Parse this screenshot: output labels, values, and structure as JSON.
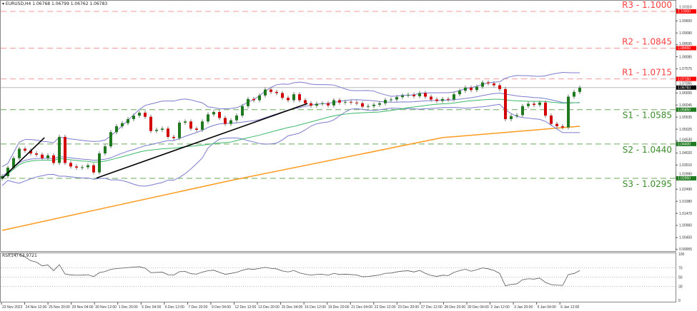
{
  "header": {
    "symbol": "EURUSD,H4",
    "ohlc": "1.06768 1.06799 1.06762 1.06783"
  },
  "rsi_label": "RSI(14) 63.9721",
  "colors": {
    "bull": "#1f7a1f",
    "bear": "#d40000",
    "resistance": "#ff4040",
    "support": "#3c8c2c",
    "bollinger": "#7b7bcf",
    "ma_green": "#3cb86a",
    "ma_orange": "#ff9a1f",
    "trendline": "#000000"
  },
  "chart_data": {
    "type": "candlestick",
    "symbol": "EURUSD",
    "timeframe": "H4",
    "ylim": [
      0.9988,
      1.1048
    ],
    "grid": false,
    "closes": [
      1.0304,
      1.034,
      1.038,
      1.042,
      1.0412,
      1.04,
      1.0395,
      1.038,
      1.0392,
      1.036,
      1.047,
      1.036,
      1.0345,
      1.034,
      1.0342,
      1.035,
      1.032,
      1.04,
      1.043,
      1.049,
      1.0515,
      1.0528,
      1.0545,
      1.056,
      1.0572,
      1.0555,
      1.0495,
      1.05,
      1.0505,
      1.047,
      1.0465,
      1.053,
      1.0535,
      1.0505,
      1.05,
      1.0535,
      1.0565,
      1.0575,
      1.055,
      1.0525,
      1.054,
      1.056,
      1.06,
      1.063,
      1.0625,
      1.0645,
      1.067,
      1.066,
      1.0655,
      1.0635,
      1.0625,
      1.065,
      1.0625,
      1.0612,
      1.0602,
      1.061,
      1.0612,
      1.0603,
      1.0625,
      1.0615,
      1.0618,
      1.0615,
      1.0612,
      1.0598,
      1.06,
      1.0606,
      1.0612,
      1.0626,
      1.0628,
      1.0638,
      1.0645,
      1.0648,
      1.0642,
      1.0655,
      1.064,
      1.0628,
      1.0622,
      1.063,
      1.0628,
      1.065,
      1.0665,
      1.0678,
      1.0668,
      1.0682,
      1.07,
      1.0696,
      1.0688,
      1.0672,
      1.0545,
      1.0558,
      1.0562,
      1.06,
      1.061,
      1.0605,
      1.0615,
      1.056,
      1.0525,
      1.0515,
      1.051,
      1.064,
      1.066,
      1.0678
    ],
    "ma_orange_points": [
      [
        0,
        1.0075
      ],
      [
        40,
        1.0286
      ],
      [
        77,
        1.0467
      ],
      [
        101,
        1.0515
      ]
    ],
    "trendlines": [
      {
        "from": [
          0,
          1.0295
        ],
        "to": [
          7.4,
          1.0467
        ]
      },
      {
        "from": [
          16.5,
          1.0296
        ],
        "to": [
          53.4,
          1.0611
        ]
      }
    ],
    "current_price": 1.06783,
    "levels": [
      {
        "name": "R3",
        "label": "R3 - 1.1000",
        "price": 1.1,
        "tag": "1.10000",
        "type": "resistance"
      },
      {
        "name": "R2",
        "label": "R2 - 1.0845",
        "price": 1.0845,
        "tag": "1.08450",
        "type": "resistance"
      },
      {
        "name": "R1",
        "label": "R1 - 1.0715",
        "price": 1.0715,
        "tag": "1.07150",
        "type": "resistance"
      },
      {
        "name": "S1",
        "label": "S1 - 1.0585",
        "price": 1.0585,
        "tag": "1.05850",
        "type": "support"
      },
      {
        "name": "S2",
        "label": "S2 - 1.0440",
        "price": 1.044,
        "tag": "1.04400",
        "type": "support"
      },
      {
        "name": "S3",
        "label": "S3 - 1.0295",
        "price": 1.0295,
        "tag": "1.02950",
        "type": "support"
      }
    ],
    "current_tag": "1.06783",
    "price_ticks": [
      "1.10110",
      "1.09600",
      "1.09090",
      "1.08595",
      "1.08085",
      "1.07575",
      "1.07065",
      "1.06555",
      "1.06045",
      "1.05535",
      "1.05025",
      "1.04530",
      "1.04020",
      "1.03510",
      "1.02990",
      "1.02490",
      "1.01980",
      "1.01470",
      "1.00960",
      "1.00450",
      "0.99955"
    ],
    "time_ticks": [
      "23 Nov 2022",
      "24 Nov 12:00",
      "25 Nov 20:00",
      "29 Nov 04:00",
      "30 Nov 12:00",
      "1 Dec 20:00",
      "5 Dec 04:00",
      "6 Dec 12:00",
      "7 Dec 20:00",
      "9 Dec 04:00",
      "12 Dec 12:00",
      "13 Dec 20:00",
      "15 Dec 04:00",
      "16 Dec 12:00",
      "19 Dec 20:00",
      "21 Dec 04:00",
      "22 Dec 12:00",
      "23 Dec 20:00",
      "27 Dec 12:00",
      "28 Dec 20:00",
      "30 Dec 04:00",
      "2 Jan 12:00",
      "3 Jan 20:00",
      "5 Jan 04:00",
      "6 Jan 12:00"
    ],
    "rsi": {
      "period": 14,
      "ylim": [
        0,
        100
      ],
      "levels": [
        70,
        50,
        30
      ],
      "tick_labels": [
        "100",
        "70",
        "50",
        "30",
        "0"
      ],
      "last": 63.9721
    }
  }
}
